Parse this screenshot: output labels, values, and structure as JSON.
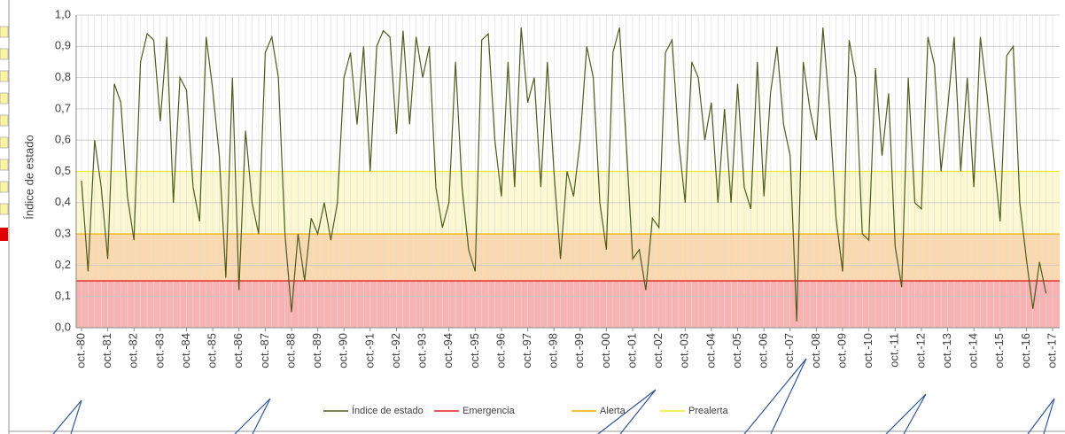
{
  "chart_data": {
    "type": "line",
    "y_label": "Índice de estado",
    "ylim": [
      0,
      1
    ],
    "yticks": [
      {
        "value": 0,
        "label": "0,0"
      },
      {
        "value": 0.1,
        "label": "0,1"
      },
      {
        "value": 0.2,
        "label": "0,2"
      },
      {
        "value": 0.3,
        "label": "0,3"
      },
      {
        "value": 0.4,
        "label": "0,4"
      },
      {
        "value": 0.5,
        "label": "0,5"
      },
      {
        "value": 0.6,
        "label": "0,6"
      },
      {
        "value": 0.7,
        "label": "0,7"
      },
      {
        "value": 0.8,
        "label": "0,8"
      },
      {
        "value": 0.9,
        "label": "0,9"
      },
      {
        "value": 1,
        "label": "1,0"
      }
    ],
    "grid": true,
    "legend": "bottom",
    "categories": [
      "oct.-80",
      null,
      null,
      null,
      "oct.-81",
      null,
      null,
      null,
      "oct.-82",
      null,
      null,
      null,
      "oct.-83",
      null,
      null,
      null,
      "oct.-84",
      null,
      null,
      null,
      "oct.-85",
      null,
      null,
      null,
      "oct.-86",
      null,
      null,
      null,
      "oct.-87",
      null,
      null,
      null,
      "oct.-88",
      null,
      null,
      null,
      "oct.-89",
      null,
      null,
      null,
      "oct.-90",
      null,
      null,
      null,
      "oct.-91",
      null,
      null,
      null,
      "oct.-92",
      null,
      null,
      null,
      "oct.-93",
      null,
      null,
      null,
      "oct.-94",
      null,
      null,
      null,
      "oct.-95",
      null,
      null,
      null,
      "oct.-96",
      null,
      null,
      null,
      "oct.-97",
      null,
      null,
      null,
      "oct.-98",
      null,
      null,
      null,
      "oct.-99",
      null,
      null,
      null,
      "oct.-00",
      null,
      null,
      null,
      "oct.-01",
      null,
      null,
      null,
      "oct.-02",
      null,
      null,
      null,
      "oct.-03",
      null,
      null,
      null,
      "oct.-04",
      null,
      null,
      null,
      "oct.-05",
      null,
      null,
      null,
      "oct.-06",
      null,
      null,
      null,
      "oct.-07",
      null,
      null,
      null,
      "oct.-08",
      null,
      null,
      null,
      "oct.-09",
      null,
      null,
      null,
      "oct.-10",
      null,
      null,
      null,
      "oct.-11",
      null,
      null,
      null,
      "oct.-12",
      null,
      null,
      null,
      "oct.-13",
      null,
      null,
      null,
      "oct.-14",
      null,
      null,
      null,
      "oct.-15",
      null,
      null,
      null,
      "oct.-16",
      null,
      null,
      null,
      "oct.-17"
    ],
    "series": [
      {
        "name": "Índice de estado",
        "color": "#4f5b1e",
        "values": [
          0.47,
          0.18,
          0.6,
          0.45,
          0.22,
          0.78,
          0.72,
          0.42,
          0.28,
          0.85,
          0.94,
          0.92,
          0.66,
          0.93,
          0.4,
          0.8,
          0.76,
          0.45,
          0.34,
          0.93,
          0.76,
          0.55,
          0.16,
          0.8,
          0.12,
          0.63,
          0.4,
          0.3,
          0.88,
          0.93,
          0.8,
          0.3,
          0.05,
          0.3,
          0.15,
          0.35,
          0.3,
          0.4,
          0.28,
          0.4,
          0.8,
          0.88,
          0.65,
          0.9,
          0.5,
          0.9,
          0.95,
          0.93,
          0.62,
          0.95,
          0.65,
          0.93,
          0.8,
          0.9,
          0.45,
          0.32,
          0.4,
          0.85,
          0.45,
          0.25,
          0.18,
          0.92,
          0.94,
          0.6,
          0.42,
          0.85,
          0.45,
          0.96,
          0.72,
          0.8,
          0.45,
          0.85,
          0.5,
          0.22,
          0.5,
          0.42,
          0.6,
          0.9,
          0.8,
          0.4,
          0.25,
          0.88,
          0.96,
          0.6,
          0.22,
          0.25,
          0.12,
          0.35,
          0.32,
          0.88,
          0.92,
          0.6,
          0.4,
          0.85,
          0.8,
          0.6,
          0.72,
          0.4,
          0.7,
          0.4,
          0.78,
          0.45,
          0.38,
          0.85,
          0.42,
          0.75,
          0.9,
          0.65,
          0.55,
          0.02,
          0.85,
          0.7,
          0.6,
          0.96,
          0.7,
          0.35,
          0.18,
          0.92,
          0.8,
          0.3,
          0.28,
          0.83,
          0.55,
          0.75,
          0.26,
          0.13,
          0.8,
          0.4,
          0.38,
          0.93,
          0.84,
          0.5,
          0.7,
          0.93,
          0.5,
          0.8,
          0.45,
          0.93,
          0.75,
          0.55,
          0.34,
          0.87,
          0.9,
          0.4,
          0.22,
          0.06,
          0.21,
          0.11,
          null
        ]
      }
    ],
    "thresholds": [
      {
        "name": "Emergencia",
        "value": 0.15,
        "color": "#e0201b",
        "fill": "#f8b2b2"
      },
      {
        "name": "Alerta",
        "value": 0.3,
        "color": "#f0b000",
        "fill": "#fad9ae"
      },
      {
        "name": "Prealerta",
        "value": 0.5,
        "color": "#f2ec28",
        "fill": "#fcf8d2"
      }
    ]
  }
}
